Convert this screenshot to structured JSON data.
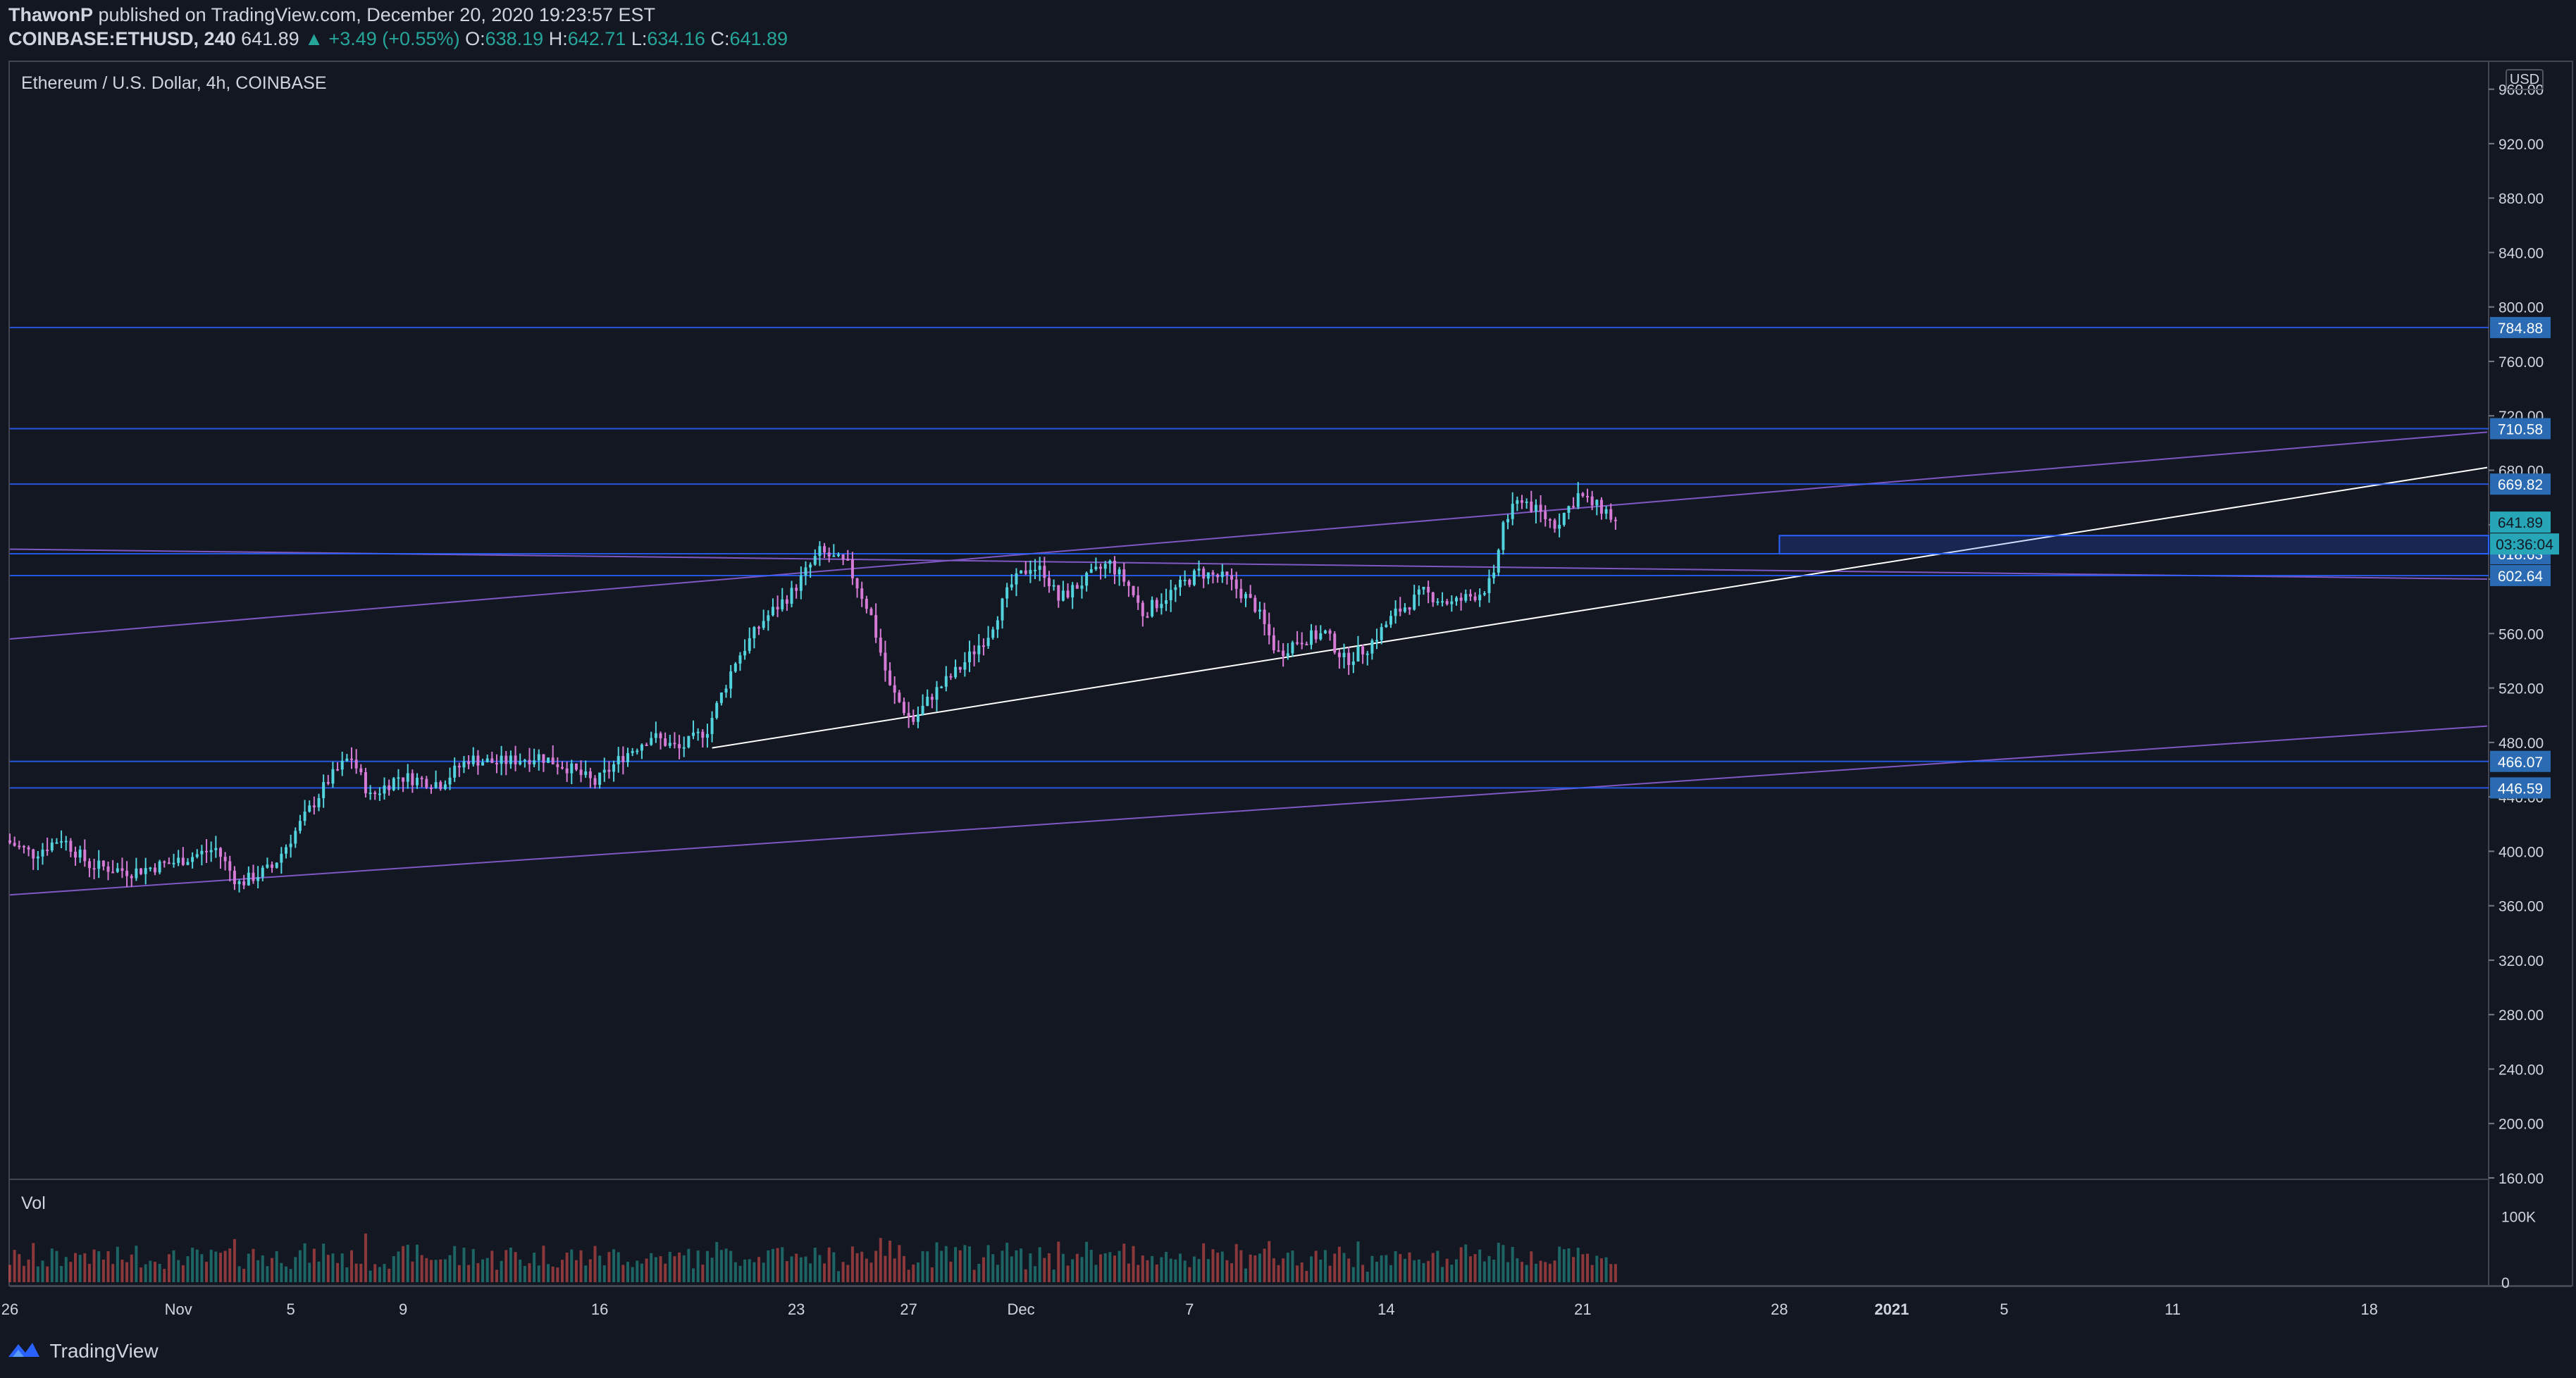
{
  "header": {
    "author": "ThawonP",
    "published_text": "published on TradingView.com, December 20, 2020 19:23:57 EST",
    "symbol": "COINBASE:ETHUSD, 240",
    "last": "641.89",
    "change": "▲ +3.49 (+0.55%)",
    "o_label": "O:",
    "o": "638.19",
    "h_label": "H:",
    "h": "642.71",
    "l_label": "L:",
    "l": "634.16",
    "c_label": "C:",
    "c": "641.89"
  },
  "footer": {
    "brand": "TradingView",
    "logo_icon": "tradingview-logo-icon"
  },
  "chart_data": {
    "type": "candlestick",
    "title": "Ethereum / U.S. Dollar, 4h, COINBASE",
    "currency": "USD",
    "volume_label": "Vol",
    "y_ticks": [
      "960.00",
      "920.00",
      "880.00",
      "840.00",
      "800.00",
      "760.00",
      "720.00",
      "680.00",
      "640.00",
      "600.00",
      "560.00",
      "520.00",
      "480.00",
      "440.00",
      "400.00",
      "360.00",
      "320.00",
      "280.00",
      "240.00",
      "200.00",
      "160.00"
    ],
    "ylim": [
      160,
      980
    ],
    "volume_ticks": [
      "100K",
      "0"
    ],
    "x_ticks": [
      {
        "label": "26",
        "day": 0
      },
      {
        "label": "Nov",
        "day": 6
      },
      {
        "label": "5",
        "day": 10
      },
      {
        "label": "9",
        "day": 14
      },
      {
        "label": "16",
        "day": 21
      },
      {
        "label": "23",
        "day": 28
      },
      {
        "label": "27",
        "day": 32
      },
      {
        "label": "Dec",
        "day": 36
      },
      {
        "label": "7",
        "day": 42
      },
      {
        "label": "14",
        "day": 49
      },
      {
        "label": "21",
        "day": 56
      },
      {
        "label": "28",
        "day": 63
      },
      {
        "label": "2021",
        "day": 67
      },
      {
        "label": "5",
        "day": 71
      },
      {
        "label": "11",
        "day": 77
      },
      {
        "label": "18",
        "day": 84
      }
    ],
    "x_range_days": [
      0,
      88.2
    ],
    "horizontal_levels": [
      {
        "price": 784.88,
        "label": "784.88"
      },
      {
        "price": 710.58,
        "label": "710.58"
      },
      {
        "price": 669.82,
        "label": "669.82"
      },
      {
        "price": 618.63,
        "label": "618.63"
      },
      {
        "price": 602.64,
        "label": "602.64"
      },
      {
        "price": 466.07,
        "label": "466.07"
      },
      {
        "price": 446.59,
        "label": "446.59"
      }
    ],
    "last_price": "641.89",
    "countdown": "03:36:04",
    "colors": {
      "up": "#26a69a",
      "down": "#ef5350",
      "level": "#2962ff",
      "level_label_bg": "#2a6bb3",
      "trend_purple": "#7e57c2",
      "trend_white": "#ffffff",
      "wick_up": "#53d3dd",
      "wick_down": "#d57bd6"
    },
    "candles_pivots": [
      {
        "day": 0,
        "price": 408
      },
      {
        "day": 1,
        "price": 398
      },
      {
        "day": 2,
        "price": 410
      },
      {
        "day": 3,
        "price": 390
      },
      {
        "day": 4.5,
        "price": 385
      },
      {
        "day": 6,
        "price": 392
      },
      {
        "day": 7.5,
        "price": 402
      },
      {
        "day": 8.3,
        "price": 376
      },
      {
        "day": 9.5,
        "price": 388
      },
      {
        "day": 10.5,
        "price": 420
      },
      {
        "day": 11.5,
        "price": 452
      },
      {
        "day": 12.3,
        "price": 470
      },
      {
        "day": 13,
        "price": 440
      },
      {
        "day": 14,
        "price": 455
      },
      {
        "day": 15.5,
        "price": 450
      },
      {
        "day": 16.5,
        "price": 468
      },
      {
        "day": 17.5,
        "price": 465
      },
      {
        "day": 19,
        "price": 470
      },
      {
        "day": 20,
        "price": 462
      },
      {
        "day": 21,
        "price": 450
      },
      {
        "day": 22,
        "price": 470
      },
      {
        "day": 23,
        "price": 485
      },
      {
        "day": 24,
        "price": 475
      },
      {
        "day": 25,
        "price": 490
      },
      {
        "day": 26,
        "price": 540
      },
      {
        "day": 27,
        "price": 570
      },
      {
        "day": 28,
        "price": 590
      },
      {
        "day": 29,
        "price": 620
      },
      {
        "day": 30,
        "price": 610
      },
      {
        "day": 30.8,
        "price": 575
      },
      {
        "day": 31.5,
        "price": 520
      },
      {
        "day": 32.3,
        "price": 495
      },
      {
        "day": 33,
        "price": 515
      },
      {
        "day": 34,
        "price": 535
      },
      {
        "day": 35,
        "price": 560
      },
      {
        "day": 35.8,
        "price": 595
      },
      {
        "day": 36.5,
        "price": 610
      },
      {
        "day": 37,
        "price": 605
      },
      {
        "day": 37.5,
        "price": 585
      },
      {
        "day": 38.5,
        "price": 600
      },
      {
        "day": 39.3,
        "price": 612
      },
      {
        "day": 40,
        "price": 595
      },
      {
        "day": 40.5,
        "price": 575
      },
      {
        "day": 41.5,
        "price": 590
      },
      {
        "day": 42.5,
        "price": 605
      },
      {
        "day": 43.5,
        "price": 600
      },
      {
        "day": 44.5,
        "price": 580
      },
      {
        "day": 45.3,
        "price": 545
      },
      {
        "day": 46,
        "price": 555
      },
      {
        "day": 47,
        "price": 560
      },
      {
        "day": 47.7,
        "price": 540
      },
      {
        "day": 48.5,
        "price": 550
      },
      {
        "day": 49.5,
        "price": 575
      },
      {
        "day": 50.5,
        "price": 590
      },
      {
        "day": 51.5,
        "price": 582
      },
      {
        "day": 52.5,
        "price": 590
      },
      {
        "day": 53,
        "price": 600
      },
      {
        "day": 53.3,
        "price": 640
      },
      {
        "day": 54,
        "price": 660
      },
      {
        "day": 54.5,
        "price": 650
      },
      {
        "day": 55.2,
        "price": 640
      },
      {
        "day": 56,
        "price": 662
      },
      {
        "day": 56.5,
        "price": 655
      },
      {
        "day": 57,
        "price": 650
      },
      {
        "day": 57.3,
        "price": 642
      }
    ]
  }
}
